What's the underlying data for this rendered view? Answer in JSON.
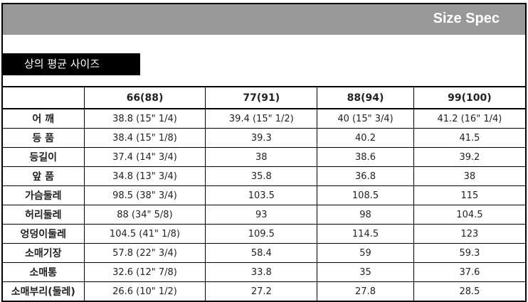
{
  "header": {
    "title": "Size Spec",
    "section_label": "상의 평균 사이즈"
  },
  "table": {
    "columns": [
      "",
      "66(88)",
      "77(91)",
      "88(94)",
      "99(100)"
    ],
    "rows": [
      {
        "label": "어 깨",
        "values": [
          "38.8 (15\" 1/4)",
          "39.4 (15\" 1/2)",
          "40 (15\" 3/4)",
          "41.2 (16\" 1/4)"
        ]
      },
      {
        "label": "등 품",
        "values": [
          "38.4 (15\" 1/8)",
          "39.3",
          "40.2",
          "41.5"
        ]
      },
      {
        "label": "등길이",
        "values": [
          "37.4 (14\" 3/4)",
          "38",
          "38.6",
          "39.2"
        ]
      },
      {
        "label": "앞 품",
        "values": [
          "34.8 (13\" 3/4)",
          "35.8",
          "36.8",
          "38"
        ]
      },
      {
        "label": "가슴둘레",
        "values": [
          "98.5 (38\" 3/4)",
          "103.5",
          "108.5",
          "115"
        ]
      },
      {
        "label": "허리둘레",
        "values": [
          "88 (34\" 5/8)",
          "93",
          "98",
          "104.5"
        ]
      },
      {
        "label": "엉덩이둘레",
        "values": [
          "104.5 (41\" 1/8)",
          "109.5",
          "114.5",
          "123"
        ]
      },
      {
        "label": "소매기장",
        "values": [
          "57.8 (22\" 3/4)",
          "58.4",
          "59",
          "59.3"
        ]
      },
      {
        "label": "소매통",
        "values": [
          "32.6 (12\" 7/8)",
          "33.8",
          "35",
          "37.6"
        ]
      },
      {
        "label": "소매부리(둘레)",
        "values": [
          "26.6 (10\" 1/2)",
          "27.2",
          "27.8",
          "28.5"
        ]
      }
    ]
  }
}
